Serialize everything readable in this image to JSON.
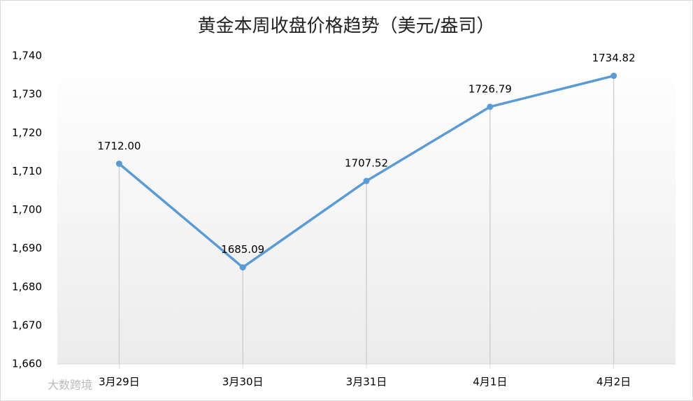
{
  "chart_data": {
    "type": "line",
    "title": "黄金本周收盘价格趋势（美元/盎司）",
    "categories": [
      "3月29日",
      "3月30日",
      "3月31日",
      "4月1日",
      "4月2日"
    ],
    "series": [
      {
        "color": "#5b9bd5",
        "values": [
          1712.0,
          1685.09,
          1707.52,
          1726.79,
          1734.82
        ],
        "value_labels": [
          "1712.00",
          "1685.09",
          "1707.52",
          "1726.79",
          "1734.82"
        ]
      }
    ],
    "ylim": [
      1660,
      1740
    ],
    "yticks": [
      {
        "value": 1660,
        "label": "1,660"
      },
      {
        "value": 1670,
        "label": "1,670"
      },
      {
        "value": 1680,
        "label": "1,680"
      },
      {
        "value": 1690,
        "label": "1,690"
      },
      {
        "value": 1700,
        "label": "1,700"
      },
      {
        "value": 1710,
        "label": "1,710"
      },
      {
        "value": 1720,
        "label": "1,720"
      },
      {
        "value": 1730,
        "label": "1,730"
      },
      {
        "value": 1740,
        "label": "1,740"
      }
    ],
    "drop_lines": true,
    "watermark": "大数跨境"
  }
}
